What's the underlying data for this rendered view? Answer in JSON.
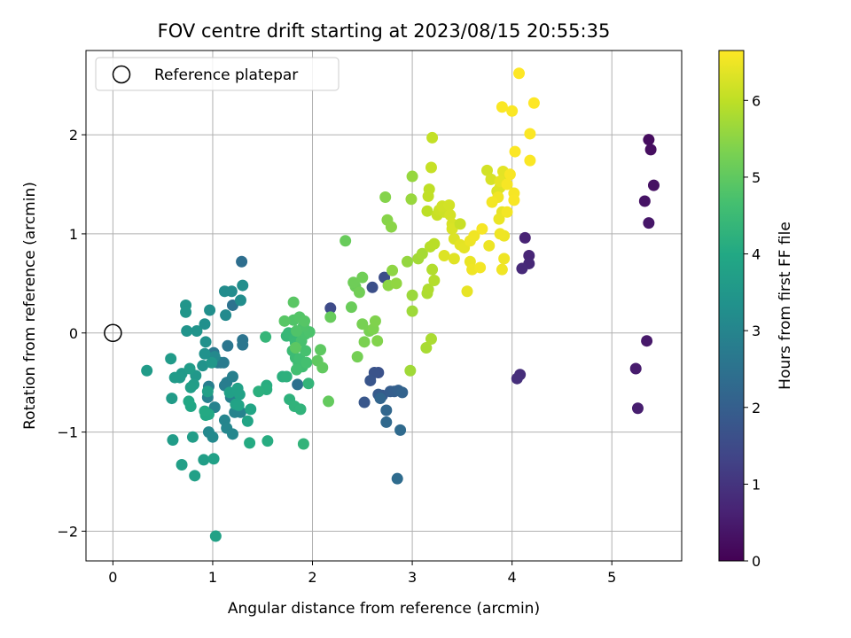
{
  "chart_data": {
    "type": "scatter",
    "title": "FOV centre drift starting at 2023/08/15 20:55:35",
    "xlabel": "Angular distance from reference (arcmin)",
    "ylabel": "Rotation from reference (arcmin)",
    "xlim": [
      -0.27,
      5.7
    ],
    "ylim": [
      -2.3,
      2.85
    ],
    "x_ticks": [
      0,
      1,
      2,
      3,
      4,
      5
    ],
    "y_ticks": [
      -2,
      -1,
      0,
      1,
      2
    ],
    "grid": true,
    "colormap": "viridis",
    "colorbar": {
      "label": "Hours from first FF file",
      "range": [
        0,
        6.65
      ],
      "ticks": [
        0,
        1,
        2,
        3,
        4,
        5,
        6
      ]
    },
    "legend": {
      "position": "top-left",
      "entries": [
        "Reference platepar"
      ]
    },
    "reference_point": {
      "x": 0,
      "y": 0
    },
    "points": [
      [
        5.37,
        1.95,
        0.2
      ],
      [
        5.39,
        1.85,
        0.25
      ],
      [
        5.42,
        1.49,
        0.3
      ],
      [
        5.33,
        1.33,
        0.35
      ],
      [
        5.37,
        1.11,
        0.4
      ],
      [
        5.35,
        -0.08,
        0.45
      ],
      [
        5.24,
        -0.36,
        0.5
      ],
      [
        5.26,
        -0.76,
        0.55
      ],
      [
        4.13,
        0.96,
        0.65
      ],
      [
        4.17,
        0.78,
        0.7
      ],
      [
        4.17,
        0.7,
        0.75
      ],
      [
        4.1,
        0.65,
        0.8
      ],
      [
        4.08,
        -0.42,
        0.85
      ],
      [
        4.05,
        -0.46,
        0.9
      ],
      [
        2.18,
        0.25,
        1.5
      ],
      [
        2.72,
        0.56,
        1.55
      ],
      [
        2.6,
        0.46,
        1.6
      ],
      [
        2.66,
        -0.4,
        1.65
      ],
      [
        2.62,
        -0.4,
        1.7
      ],
      [
        2.58,
        -0.48,
        1.75
      ],
      [
        2.52,
        -0.7,
        1.8
      ],
      [
        2.7,
        -0.63,
        1.85
      ],
      [
        2.66,
        -0.62,
        1.9
      ],
      [
        2.78,
        -0.59,
        1.95
      ],
      [
        2.82,
        -0.59,
        2.0
      ],
      [
        2.86,
        -0.58,
        2.05
      ],
      [
        2.9,
        -0.6,
        2.1
      ],
      [
        2.68,
        -0.66,
        2.15
      ],
      [
        2.74,
        -0.78,
        2.2
      ],
      [
        2.74,
        -0.9,
        2.25
      ],
      [
        2.88,
        -0.98,
        2.3
      ],
      [
        2.85,
        -1.47,
        2.35
      ],
      [
        1.29,
        0.72,
        2.4
      ],
      [
        1.85,
        -0.52,
        2.45
      ],
      [
        1.2,
        0.28,
        2.5
      ],
      [
        1.3,
        -0.07,
        2.55
      ],
      [
        1.3,
        -0.12,
        2.6
      ],
      [
        1.15,
        -0.13,
        2.62
      ],
      [
        1.01,
        -0.2,
        2.65
      ],
      [
        1.0,
        -0.24,
        2.68
      ],
      [
        1.08,
        -0.3,
        2.7
      ],
      [
        1.05,
        -0.3,
        2.72
      ],
      [
        1.11,
        -0.3,
        2.75
      ],
      [
        1.14,
        -0.5,
        2.78
      ],
      [
        1.12,
        -0.53,
        2.8
      ],
      [
        0.96,
        -0.54,
        2.82
      ],
      [
        1.2,
        -0.44,
        2.85
      ],
      [
        1.18,
        -0.65,
        2.88
      ],
      [
        0.95,
        -0.65,
        2.9
      ],
      [
        1.02,
        -0.75,
        2.92
      ],
      [
        1.28,
        -0.8,
        2.95
      ],
      [
        1.22,
        -0.8,
        2.98
      ],
      [
        1.12,
        -0.88,
        3.0
      ],
      [
        1.14,
        -0.96,
        3.02
      ],
      [
        1.2,
        -1.02,
        3.05
      ],
      [
        0.96,
        -1.0,
        3.08
      ],
      [
        1.0,
        -1.05,
        3.1
      ],
      [
        1.02,
        -0.24,
        3.12
      ],
      [
        1.13,
        0.18,
        3.15
      ],
      [
        1.12,
        0.42,
        3.18
      ],
      [
        1.19,
        0.42,
        3.2
      ],
      [
        1.28,
        0.33,
        3.22
      ],
      [
        1.3,
        0.48,
        3.25
      ],
      [
        0.97,
        0.23,
        3.28
      ],
      [
        0.92,
        0.09,
        3.3
      ],
      [
        0.93,
        -0.09,
        3.32
      ],
      [
        0.92,
        -0.21,
        3.35
      ],
      [
        0.9,
        -0.33,
        3.38
      ],
      [
        0.84,
        0.02,
        3.4
      ],
      [
        0.74,
        0.02,
        3.42
      ],
      [
        0.73,
        0.28,
        3.45
      ],
      [
        0.73,
        0.21,
        3.48
      ],
      [
        0.99,
        -0.3,
        3.5
      ],
      [
        0.83,
        -0.43,
        3.52
      ],
      [
        0.69,
        -0.41,
        3.55
      ],
      [
        0.67,
        -0.45,
        3.58
      ],
      [
        0.58,
        -0.26,
        3.6
      ],
      [
        0.34,
        -0.38,
        3.62
      ],
      [
        0.77,
        -0.36,
        3.65
      ],
      [
        0.81,
        -0.52,
        3.68
      ],
      [
        0.78,
        -0.55,
        3.7
      ],
      [
        0.95,
        -0.59,
        3.72
      ],
      [
        1.17,
        -0.6,
        3.75
      ],
      [
        1.25,
        -0.56,
        3.78
      ],
      [
        1.27,
        -0.62,
        3.8
      ],
      [
        1.23,
        -0.72,
        3.82
      ],
      [
        1.26,
        -0.73,
        3.85
      ],
      [
        1.35,
        -0.89,
        3.88
      ],
      [
        1.38,
        -0.77,
        3.9
      ],
      [
        0.78,
        -0.74,
        3.92
      ],
      [
        0.76,
        -0.69,
        3.95
      ],
      [
        0.96,
        -0.82,
        3.98
      ],
      [
        0.93,
        -0.83,
        4.0
      ],
      [
        0.92,
        -0.79,
        4.02
      ],
      [
        0.62,
        -0.45,
        3.6
      ],
      [
        0.59,
        -0.66,
        3.62
      ],
      [
        0.6,
        -1.08,
        3.65
      ],
      [
        0.8,
        -1.05,
        3.68
      ],
      [
        0.91,
        -1.28,
        3.7
      ],
      [
        0.69,
        -1.33,
        3.72
      ],
      [
        0.82,
        -1.44,
        3.75
      ],
      [
        1.01,
        -1.27,
        3.78
      ],
      [
        1.03,
        -2.05,
        3.8
      ],
      [
        1.37,
        -1.11,
        4.05
      ],
      [
        1.55,
        -1.09,
        4.1
      ],
      [
        1.54,
        -0.53,
        4.12
      ],
      [
        1.54,
        -0.57,
        4.15
      ],
      [
        1.46,
        -0.59,
        4.18
      ],
      [
        1.7,
        -0.44,
        4.2
      ],
      [
        1.74,
        -0.44,
        4.22
      ],
      [
        1.77,
        -0.67,
        4.25
      ],
      [
        1.82,
        -0.74,
        4.28
      ],
      [
        1.88,
        -0.77,
        4.3
      ],
      [
        1.91,
        -1.12,
        4.32
      ],
      [
        1.96,
        -0.51,
        4.35
      ],
      [
        1.53,
        -0.04,
        4.38
      ],
      [
        1.74,
        -0.03,
        4.4
      ],
      [
        1.76,
        0.0,
        4.42
      ],
      [
        1.82,
        -0.06,
        4.45
      ],
      [
        1.83,
        -0.1,
        4.48
      ],
      [
        1.8,
        -0.18,
        4.5
      ],
      [
        1.83,
        -0.25,
        4.52
      ],
      [
        1.86,
        -0.31,
        4.55
      ],
      [
        1.9,
        -0.34,
        4.58
      ],
      [
        1.87,
        -0.26,
        4.6
      ],
      [
        1.84,
        -0.37,
        4.62
      ],
      [
        1.94,
        -0.3,
        4.65
      ],
      [
        1.93,
        -0.18,
        4.68
      ],
      [
        1.89,
        -0.08,
        4.7
      ],
      [
        1.93,
        -0.01,
        4.72
      ],
      [
        1.97,
        0.01,
        4.75
      ],
      [
        1.91,
        0.07,
        4.78
      ],
      [
        1.84,
        0.02,
        4.8
      ],
      [
        1.81,
        0.13,
        4.82
      ],
      [
        1.87,
        0.16,
        4.85
      ],
      [
        1.92,
        0.12,
        4.88
      ],
      [
        1.72,
        0.12,
        4.9
      ],
      [
        1.81,
        0.31,
        4.92
      ],
      [
        1.83,
        -0.15,
        4.95
      ],
      [
        2.08,
        -0.17,
        4.98
      ],
      [
        2.05,
        -0.28,
        5.0
      ],
      [
        2.1,
        -0.35,
        5.02
      ],
      [
        2.16,
        -0.69,
        5.05
      ],
      [
        2.18,
        0.16,
        5.08
      ],
      [
        2.33,
        0.93,
        5.1
      ],
      [
        2.39,
        0.26,
        5.12
      ],
      [
        2.43,
        0.47,
        5.15
      ],
      [
        2.41,
        0.51,
        5.18
      ],
      [
        2.5,
        0.56,
        5.2
      ],
      [
        2.47,
        0.41,
        5.22
      ],
      [
        2.45,
        -0.24,
        5.25
      ],
      [
        2.5,
        0.09,
        5.28
      ],
      [
        2.57,
        0.02,
        5.3
      ],
      [
        2.52,
        -0.09,
        5.32
      ],
      [
        2.61,
        0.04,
        5.35
      ],
      [
        2.63,
        0.12,
        5.38
      ],
      [
        2.65,
        -0.08,
        5.4
      ],
      [
        2.73,
        1.37,
        5.42
      ],
      [
        2.75,
        1.14,
        5.45
      ],
      [
        2.79,
        1.07,
        5.48
      ],
      [
        2.76,
        0.48,
        5.5
      ],
      [
        2.8,
        0.63,
        5.52
      ],
      [
        2.84,
        0.5,
        5.55
      ],
      [
        2.95,
        0.72,
        5.58
      ],
      [
        3.0,
        1.58,
        5.6
      ],
      [
        2.99,
        1.35,
        5.62
      ],
      [
        3.0,
        0.38,
        5.65
      ],
      [
        3.0,
        0.22,
        5.68
      ],
      [
        2.98,
        -0.38,
        5.7
      ],
      [
        3.06,
        0.75,
        5.72
      ],
      [
        3.1,
        0.8,
        5.75
      ],
      [
        3.14,
        -0.15,
        5.78
      ],
      [
        3.19,
        -0.06,
        5.8
      ],
      [
        3.15,
        0.4,
        5.82
      ],
      [
        3.16,
        0.44,
        5.85
      ],
      [
        3.2,
        0.64,
        5.88
      ],
      [
        3.22,
        0.53,
        5.9
      ],
      [
        3.18,
        0.87,
        5.92
      ],
      [
        3.22,
        0.9,
        5.95
      ],
      [
        3.15,
        1.23,
        5.98
      ],
      [
        3.17,
        1.45,
        6.0
      ],
      [
        3.16,
        1.38,
        6.02
      ],
      [
        3.2,
        1.97,
        6.05
      ],
      [
        3.19,
        1.67,
        6.08
      ],
      [
        3.25,
        1.19,
        6.1
      ],
      [
        3.27,
        1.24,
        6.12
      ],
      [
        3.32,
        1.22,
        6.15
      ],
      [
        3.3,
        1.28,
        6.18
      ],
      [
        3.37,
        1.29,
        6.2
      ],
      [
        3.38,
        1.19,
        6.22
      ],
      [
        3.4,
        1.1,
        6.25
      ],
      [
        3.4,
        1.05,
        6.28
      ],
      [
        3.42,
        0.95,
        6.3
      ],
      [
        3.32,
        0.78,
        6.32
      ],
      [
        3.42,
        0.75,
        6.35
      ],
      [
        3.48,
        0.89,
        6.38
      ],
      [
        3.52,
        0.86,
        6.4
      ],
      [
        3.55,
        0.42,
        6.42
      ],
      [
        3.58,
        0.72,
        6.45
      ],
      [
        3.58,
        0.93,
        6.48
      ],
      [
        3.6,
        0.64,
        6.5
      ],
      [
        3.62,
        0.98,
        6.52
      ],
      [
        3.68,
        0.66,
        6.55
      ],
      [
        3.7,
        1.05,
        6.58
      ],
      [
        3.48,
        1.1,
        6.1
      ],
      [
        3.75,
        1.64,
        6.2
      ],
      [
        3.79,
        1.55,
        6.25
      ],
      [
        3.85,
        1.43,
        6.3
      ],
      [
        3.88,
        1.47,
        6.32
      ],
      [
        3.92,
        1.57,
        6.35
      ],
      [
        3.91,
        1.63,
        6.38
      ],
      [
        3.88,
        1.53,
        6.4
      ],
      [
        3.9,
        1.22,
        6.42
      ],
      [
        3.87,
        1.15,
        6.45
      ],
      [
        3.92,
        0.98,
        6.48
      ],
      [
        3.92,
        0.75,
        6.5
      ],
      [
        3.9,
        0.64,
        6.52
      ],
      [
        3.88,
        1.0,
        6.5
      ],
      [
        3.86,
        1.37,
        6.52
      ],
      [
        3.8,
        1.32,
        6.55
      ],
      [
        3.77,
        0.88,
        6.48
      ],
      [
        3.95,
        1.22,
        6.55
      ],
      [
        3.95,
        1.5,
        6.58
      ],
      [
        3.98,
        1.6,
        6.6
      ],
      [
        4.02,
        1.41,
        6.58
      ],
      [
        4.02,
        1.34,
        6.6
      ],
      [
        4.0,
        2.24,
        6.62
      ],
      [
        4.03,
        1.83,
        6.63
      ],
      [
        3.9,
        2.28,
        6.62
      ],
      [
        4.07,
        2.62,
        6.65
      ],
      [
        4.18,
        1.74,
        6.62
      ],
      [
        4.18,
        2.01,
        6.63
      ],
      [
        4.22,
        2.32,
        6.65
      ]
    ]
  }
}
